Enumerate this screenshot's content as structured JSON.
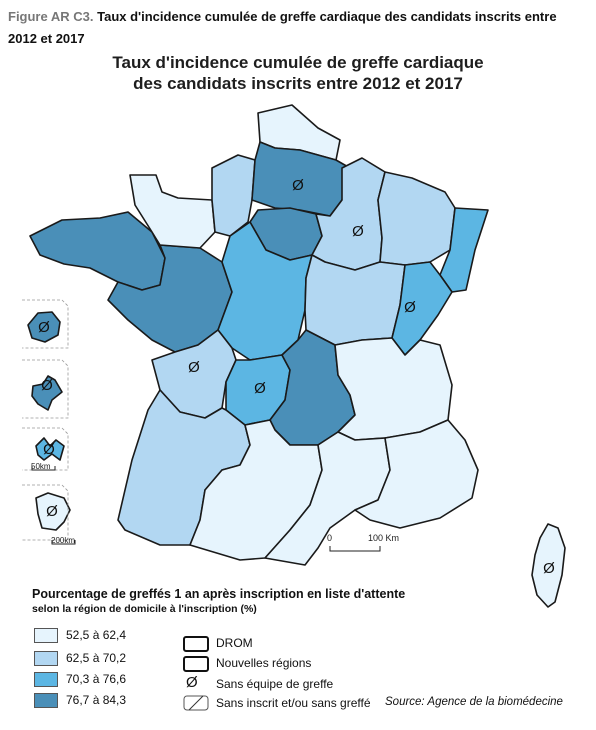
{
  "caption": {
    "prefix": "Figure AR C3.",
    "text": "Taux d'incidence cumulée de greffe cardiaque des candidats inscrits entre 2012 et 2017"
  },
  "map": {
    "title_line1": "Taux d'incidence cumulée de greffe cardiaque",
    "title_line2": "des candidats inscrits entre 2012 et 2017",
    "scale_label_zero": "0",
    "scale_label_100": "100 Km",
    "drom_scale_50": "50km",
    "drom_scale_200": "200km"
  },
  "legend": {
    "title": "Pourcentage de greffés 1 an après inscription en liste d'attente",
    "subtitle": "selon la région de domicile à l'inscription (%)",
    "classes": [
      {
        "label": "52,5 à 62,4",
        "color": "#e6f4fd"
      },
      {
        "label": "62,5 à 70,2",
        "color": "#b2d7f2"
      },
      {
        "label": "70,3 à 76,6",
        "color": "#5cb6e3"
      },
      {
        "label": "76,7 à 84,3",
        "color": "#4a8fb8"
      }
    ],
    "drom_label": "DROM",
    "new_regions_label": "Nouvelles régions",
    "no_team_symbol": "Ø",
    "no_team_label": "Sans équipe de greffe",
    "hatched_label": "Sans inscrit et/ou sans greffé"
  },
  "source": "Source: Agence de la biomédecine",
  "no_team_areas": [
    "Nord",
    "Champagne-Ardenne",
    "Franche-Comté",
    "Poitou-Charentes",
    "Limousin",
    "Corse",
    "Réunion",
    "Martinique",
    "Guadeloupe",
    "Guyane"
  ]
}
